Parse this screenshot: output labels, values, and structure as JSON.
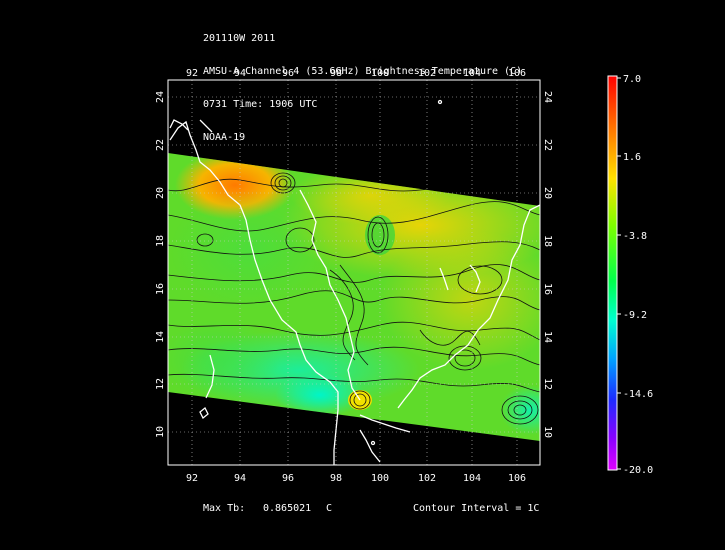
{
  "title": {
    "line1": "201110W 2011",
    "line2": "AMSU-A Channel 4 (53.6GHz) Brightness Temperature (C)",
    "line3": "0731 Time: 1906 UTC",
    "line4": "NOAA-19"
  },
  "map": {
    "lon_labels": [
      "92",
      "94",
      "96",
      "98",
      "100",
      "102",
      "104",
      "106"
    ],
    "lat_labels": [
      "10",
      "12",
      "14",
      "16",
      "18",
      "20",
      "22",
      "24"
    ],
    "lon_range": [
      90.7,
      106.7
    ],
    "lat_range": [
      8.8,
      24.9
    ]
  },
  "colorbar": {
    "ticks": [
      "7.0",
      "1.6",
      "-3.8",
      "-9.2",
      "-14.6",
      "-20.0"
    ],
    "min": -20.0,
    "max": 7.0
  },
  "footer": {
    "max_label": "Max Tb:",
    "max_value": "0.865021",
    "max_unit": "C",
    "contour_label": "Contour Interval = 1C"
  },
  "colors": {
    "background": "#000000",
    "swath_green": "#44dd22",
    "warm": "#ff8800",
    "cool": "#00ffbb"
  }
}
